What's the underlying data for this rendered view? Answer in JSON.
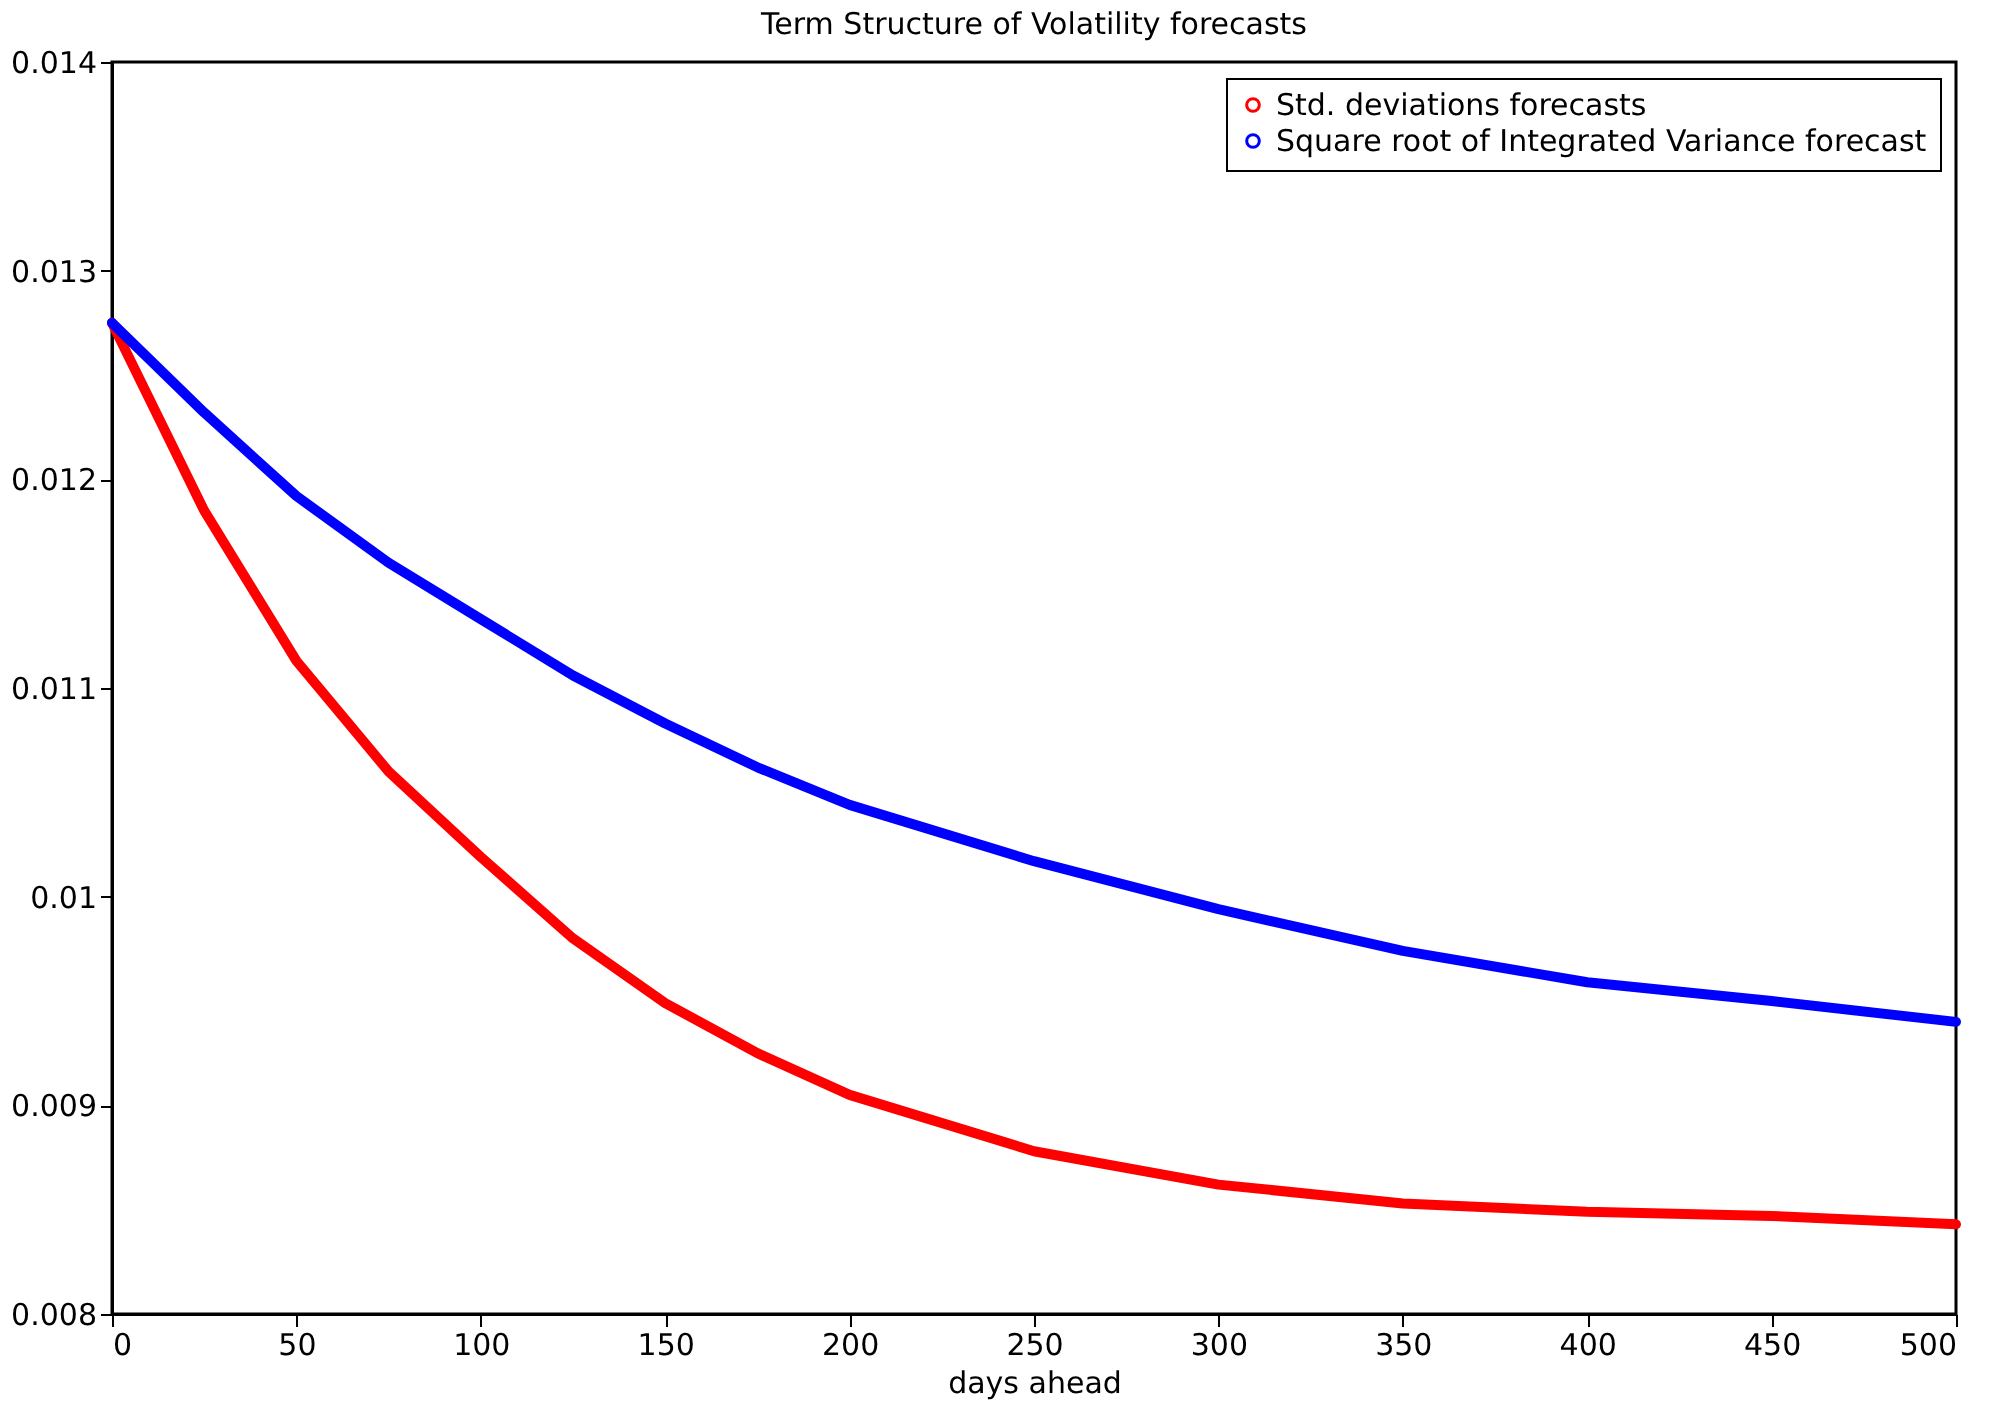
{
  "chart_data": {
    "type": "line",
    "title": "Term Structure of Volatility forecasts",
    "xlabel": "days ahead",
    "x": [
      0,
      25,
      50,
      75,
      100,
      125,
      150,
      175,
      200,
      250,
      300,
      350,
      400,
      450,
      500
    ],
    "series": [
      {
        "name": "Std. deviations forecasts",
        "color": "#ff0000",
        "values": [
          0.01275,
          0.01185,
          0.01113,
          0.0106,
          0.01019,
          0.0098,
          0.00949,
          0.00925,
          0.00905,
          0.00878,
          0.00862,
          0.00853,
          0.00849,
          0.00847,
          0.00843
        ]
      },
      {
        "name": "Square root of Integrated Variance forecast",
        "color": "#0000ff",
        "values": [
          0.01275,
          0.01232,
          0.01192,
          0.0116,
          0.01133,
          0.01106,
          0.01083,
          0.01062,
          0.01044,
          0.01017,
          0.00994,
          0.00974,
          0.00959,
          0.0095,
          0.0094
        ]
      }
    ],
    "xlim": [
      0,
      500
    ],
    "xticks": [
      0,
      50,
      100,
      150,
      200,
      250,
      300,
      350,
      400,
      450,
      500
    ],
    "ylim": [
      0.008,
      0.014
    ],
    "yticks": [
      {
        "value": 0.008,
        "label": "0.008"
      },
      {
        "value": 0.009,
        "label": "0.009"
      },
      {
        "value": 0.01,
        "label": "0.01"
      },
      {
        "value": 0.011,
        "label": "0.011"
      },
      {
        "value": 0.012,
        "label": "0.012"
      },
      {
        "value": 0.013,
        "label": "0.013"
      },
      {
        "value": 0.014,
        "label": "0.014"
      }
    ],
    "grid": false,
    "legend": "top right",
    "line_style": "solid"
  }
}
